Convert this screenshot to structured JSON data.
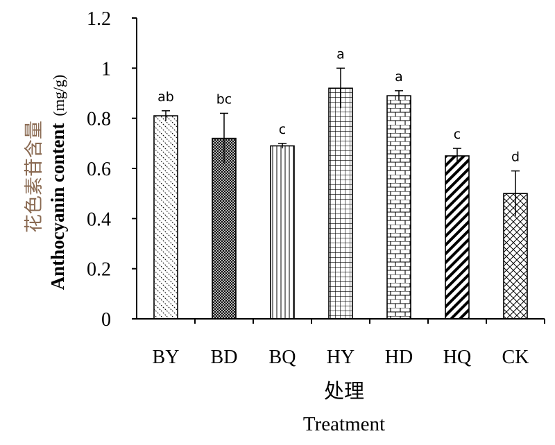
{
  "chart_data": {
    "type": "bar",
    "categories": [
      "BY",
      "BD",
      "BQ",
      "HY",
      "HD",
      "HQ",
      "CK"
    ],
    "values": [
      0.81,
      0.72,
      0.69,
      0.92,
      0.89,
      0.65,
      0.5
    ],
    "errors": [
      0.02,
      0.1,
      0.01,
      0.08,
      0.02,
      0.03,
      0.09
    ],
    "significance": [
      "ab",
      "bc",
      "c",
      "a",
      "a",
      "c",
      "d"
    ],
    "patterns": [
      "backslash-dashed",
      "dense-crosshatch",
      "vertical-lines",
      "grid",
      "brick",
      "bold-diagonal",
      "diagonal-cross"
    ],
    "ylim": [
      0,
      1.2
    ],
    "yticks": [
      "0",
      "0.2",
      "0.4",
      "0.6",
      "0.8",
      "1",
      "1.2"
    ],
    "xlabel_cn": "处理",
    "xlabel_en": "Treatment",
    "ylabel_cn": "花色素苷含量",
    "ylabel_en": "Anthocyanin content",
    "ylabel_unit": "(mg/g)",
    "grid": false
  }
}
